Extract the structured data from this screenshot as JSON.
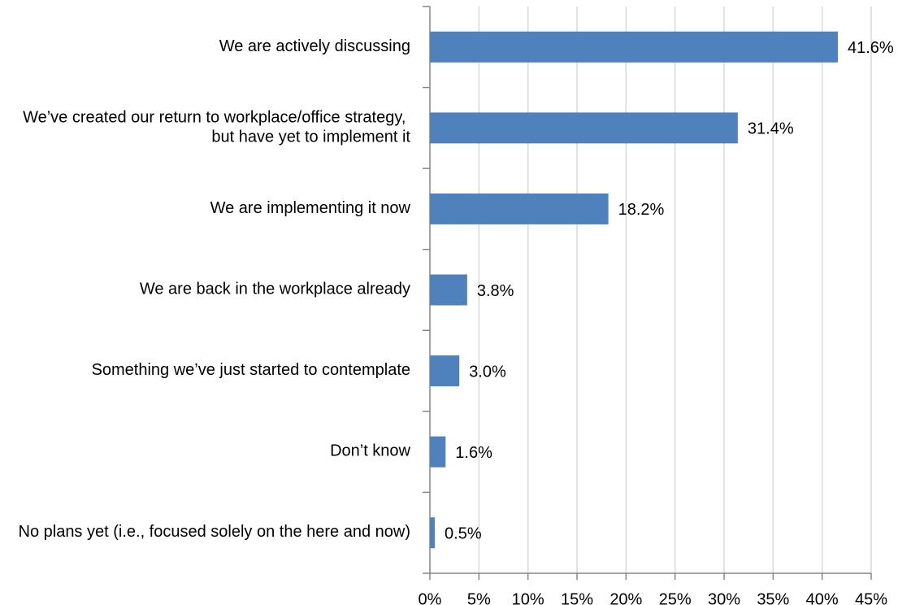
{
  "chart_data": {
    "type": "bar",
    "orientation": "horizontal",
    "categories": [
      "We are actively discussing",
      "We’ve created our return to workplace/office strategy, but have yet to implement it",
      "We are implementing it now",
      "We are back in the workplace already",
      "Something we’ve just started to contemplate",
      "Don’t know",
      "No plans yet (i.e., focused solely on the here and now)"
    ],
    "values": [
      41.6,
      31.4,
      18.2,
      3.8,
      3.0,
      1.6,
      0.5
    ],
    "value_labels": [
      "41.6%",
      "31.4%",
      "18.2%",
      "3.8%",
      "3.0%",
      "1.6%",
      "0.5%"
    ],
    "color": "#4f81bd",
    "xlim": [
      0,
      45
    ],
    "xticks": [
      {
        "value": 0,
        "label": "0%"
      },
      {
        "value": 5,
        "label": "5%"
      },
      {
        "value": 10,
        "label": "10%"
      },
      {
        "value": 15,
        "label": "15%"
      },
      {
        "value": 20,
        "label": "20%"
      },
      {
        "value": 25,
        "label": "25%"
      },
      {
        "value": 30,
        "label": "30%"
      },
      {
        "value": 35,
        "label": "35%"
      },
      {
        "value": 40,
        "label": "40%"
      },
      {
        "value": 45,
        "label": "45%"
      }
    ],
    "grid": true
  }
}
